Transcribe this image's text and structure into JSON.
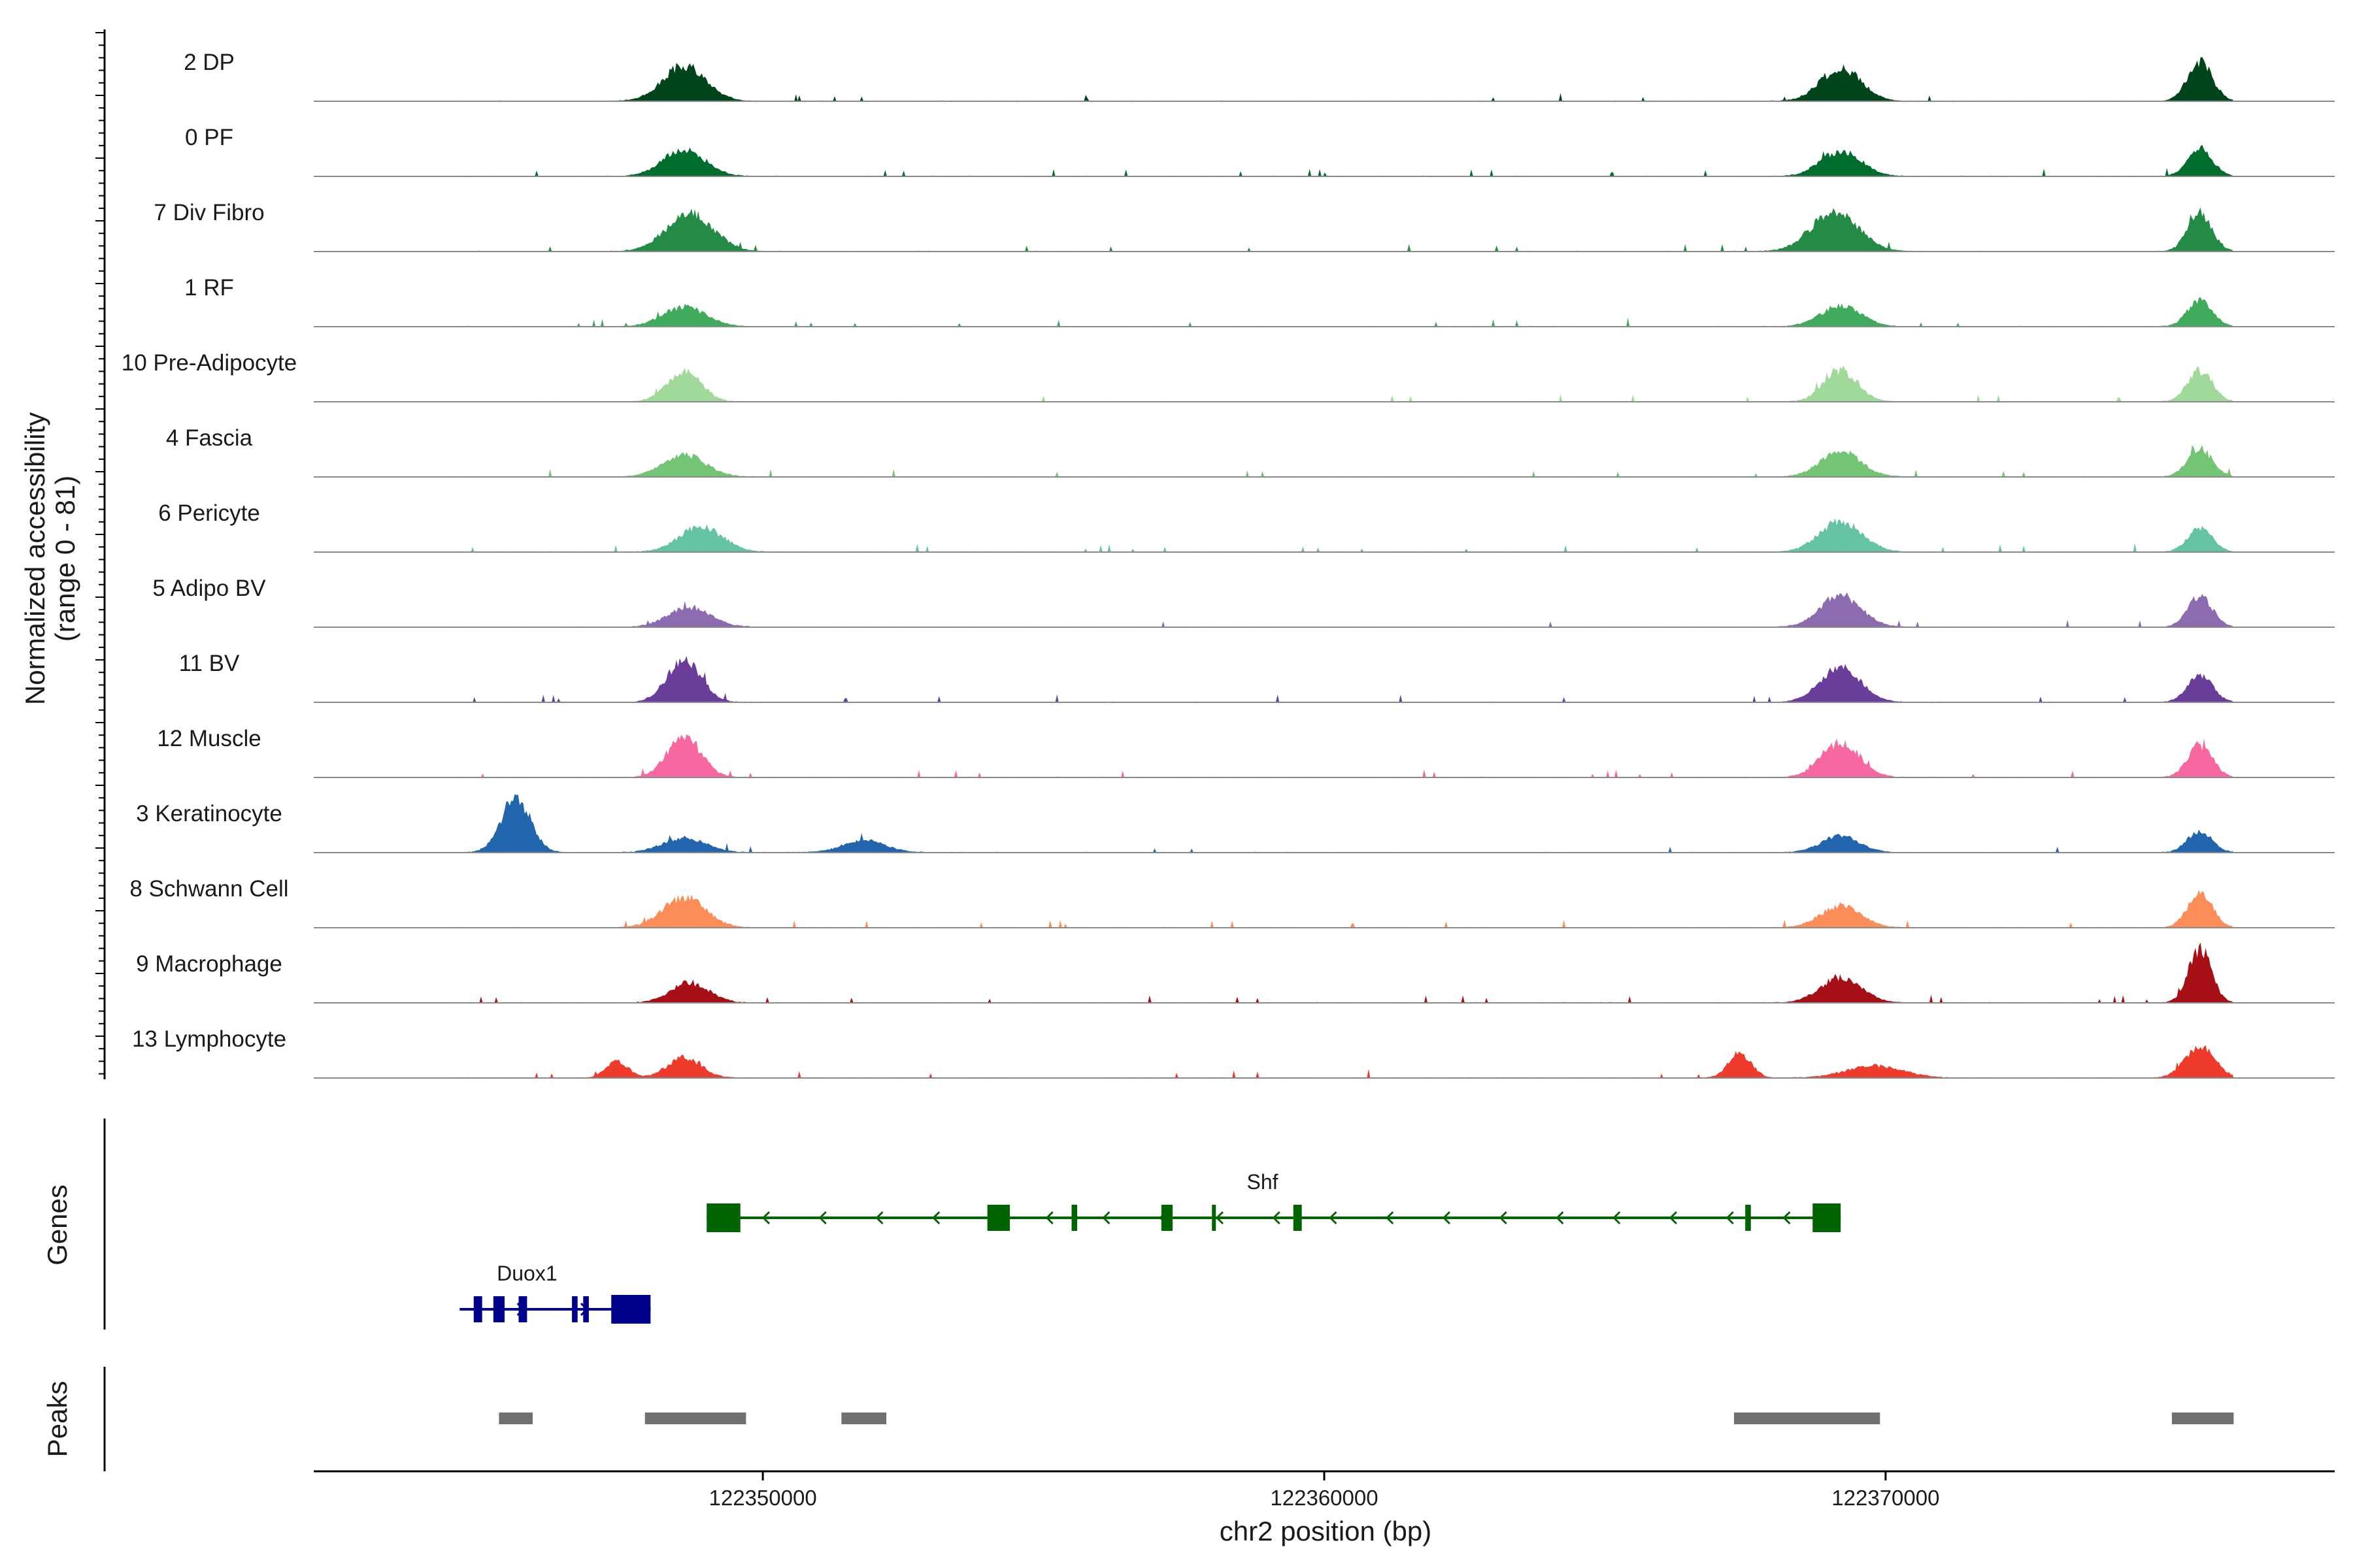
{
  "chart_data": {
    "type": "area",
    "chromosome": "chr2",
    "xlim": [
      122342000,
      122378000
    ],
    "ylim": [
      0,
      81
    ],
    "ylabel_line1": "Normalized accessibility",
    "ylabel_line2": "(range 0 - 81)",
    "xlabel": "chr2 position (bp)",
    "x_ticks": [
      122350000,
      122360000,
      122370000
    ],
    "x_tick_labels": [
      "122350000",
      "122360000",
      "122370000"
    ],
    "series": [
      {
        "name": "2 DP",
        "color": "#00441b",
        "peaks": [
          [
            122348600,
            65,
            380
          ],
          [
            122369200,
            60,
            360
          ],
          [
            122375600,
            72,
            220
          ]
        ]
      },
      {
        "name": "0 PF",
        "color": "#006d2c",
        "peaks": [
          [
            122348600,
            48,
            380
          ],
          [
            122369200,
            46,
            360
          ],
          [
            122375600,
            50,
            220
          ]
        ]
      },
      {
        "name": "7 Div Fibro",
        "color": "#238b45",
        "peaks": [
          [
            122348700,
            68,
            420
          ],
          [
            122369100,
            72,
            420
          ],
          [
            122375600,
            65,
            220
          ]
        ]
      },
      {
        "name": "1 RF",
        "color": "#41ab5d",
        "peaks": [
          [
            122348600,
            36,
            380
          ],
          [
            122369200,
            38,
            360
          ],
          [
            122375600,
            48,
            220
          ]
        ]
      },
      {
        "name": "10 Pre-Adipocyte",
        "color": "#a1d99b",
        "peaks": [
          [
            122348600,
            55,
            300
          ],
          [
            122369200,
            58,
            300
          ],
          [
            122375600,
            56,
            220
          ]
        ]
      },
      {
        "name": "4 Fascia",
        "color": "#74c476",
        "peaks": [
          [
            122348600,
            40,
            380
          ],
          [
            122369200,
            46,
            360
          ],
          [
            122375600,
            52,
            220
          ]
        ]
      },
      {
        "name": "6 Pericyte",
        "color": "#66c2a4",
        "peaks": [
          [
            122348900,
            46,
            380
          ],
          [
            122369200,
            55,
            380
          ],
          [
            122375600,
            42,
            220
          ]
        ]
      },
      {
        "name": "5 Adipo BV",
        "color": "#8c6bb1",
        "peaks": [
          [
            122348700,
            36,
            380
          ],
          [
            122369200,
            58,
            360
          ],
          [
            122375600,
            55,
            220
          ]
        ]
      },
      {
        "name": "11 BV",
        "color": "#6a3d9a",
        "peaks": [
          [
            122348600,
            78,
            300
          ],
          [
            122369200,
            62,
            360
          ],
          [
            122375600,
            52,
            220
          ]
        ]
      },
      {
        "name": "12 Muscle",
        "color": "#f768a1",
        "peaks": [
          [
            122348600,
            75,
            300
          ],
          [
            122369200,
            64,
            340
          ],
          [
            122375600,
            58,
            220
          ]
        ]
      },
      {
        "name": "3 Keratinocyte",
        "color": "#2166ac",
        "peaks": [
          [
            122345600,
            100,
            260
          ],
          [
            122348600,
            26,
            380
          ],
          [
            122351800,
            22,
            380
          ],
          [
            122369200,
            30,
            340
          ],
          [
            122375600,
            38,
            220
          ]
        ]
      },
      {
        "name": "8 Schwann Cell",
        "color": "#fc8d59",
        "peaks": [
          [
            122348600,
            55,
            380
          ],
          [
            122369200,
            40,
            360
          ],
          [
            122375600,
            62,
            220
          ]
        ]
      },
      {
        "name": "9 Macrophage",
        "color": "#a50f15",
        "peaks": [
          [
            122348700,
            36,
            340
          ],
          [
            122369200,
            46,
            360
          ],
          [
            122375600,
            100,
            200
          ]
        ]
      },
      {
        "name": "13 Lymphocyte",
        "color": "#ef3b2c",
        "peaks": [
          [
            122347400,
            30,
            200
          ],
          [
            122348600,
            36,
            300
          ],
          [
            122367400,
            46,
            200
          ],
          [
            122369800,
            22,
            500
          ],
          [
            122375600,
            58,
            260
          ]
        ]
      }
    ],
    "genes_panel_label": "Genes",
    "genes": [
      {
        "name": "Shf",
        "strand": "-",
        "start": 122349000,
        "end": 122369200,
        "color": "#006400",
        "exons": [
          [
            122349000,
            122349600
          ],
          [
            122354000,
            122354400
          ],
          [
            122355500,
            122355600
          ],
          [
            122357100,
            122357300
          ],
          [
            122358000,
            122358060
          ],
          [
            122359450,
            122359600
          ],
          [
            122367500,
            122367600
          ],
          [
            122368700,
            122369200
          ]
        ]
      },
      {
        "name": "Duox1",
        "strand": "+",
        "start": 122344600,
        "end": 122348000,
        "color": "#00008b",
        "exons": [
          [
            122344850,
            122345000
          ],
          [
            122345200,
            122345400
          ],
          [
            122345650,
            122345800
          ],
          [
            122346600,
            122346700
          ],
          [
            122346800,
            122346900
          ],
          [
            122347300,
            122348000
          ]
        ]
      }
    ],
    "peaks_panel_label": "Peaks",
    "peaks": [
      [
        122345300,
        122345900
      ],
      [
        122347900,
        122349700
      ],
      [
        122351400,
        122352200
      ],
      [
        122367300,
        122369900
      ],
      [
        122375100,
        122376200
      ]
    ],
    "peak_color": "#707070"
  }
}
